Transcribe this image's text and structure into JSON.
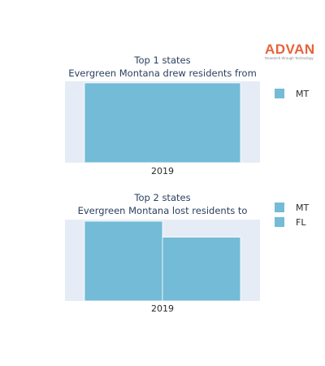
{
  "brand": {
    "name": "ADVAN",
    "tagline": "Research through Technology",
    "color": "#e8613a"
  },
  "colors": {
    "bar": "#73bbd6",
    "plot_bg": "#e5ecf6"
  },
  "chart_data": [
    {
      "type": "bar",
      "barmode": "group",
      "title": "Top 1 states",
      "subtitle": "Evergreen Montana drew residents from",
      "categories": [
        "2019"
      ],
      "series": [
        {
          "name": "MT",
          "values": [
            1
          ]
        }
      ],
      "ylim": [
        0,
        1.02
      ],
      "y_axis_visible": false,
      "grid": false,
      "legend": "right"
    },
    {
      "type": "bar",
      "barmode": "group",
      "title": "Top 2 states",
      "subtitle": "Evergreen Montana lost residents to",
      "categories": [
        "2019"
      ],
      "series": [
        {
          "name": "MT",
          "values": [
            1
          ]
        },
        {
          "name": "FL",
          "values": [
            0.8
          ]
        }
      ],
      "ylim": [
        0,
        1.02
      ],
      "y_axis_visible": false,
      "grid": false,
      "legend": "right"
    }
  ]
}
